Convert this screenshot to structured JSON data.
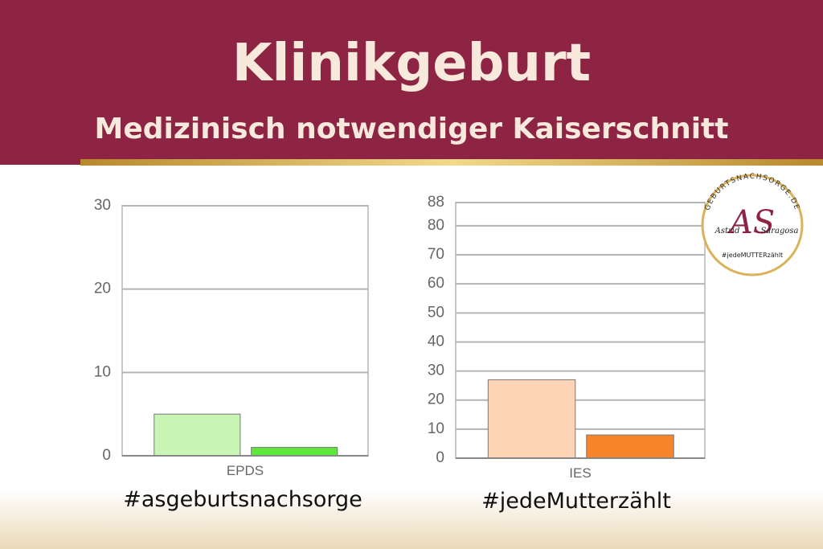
{
  "title": "Klinikgeburt",
  "subtitle": "Medizinisch notwendiger Kaiserschnitt",
  "chart_data": [
    {
      "type": "bar",
      "categories": [
        "EPDS"
      ],
      "series": [
        {
          "color": "#c8f5b4",
          "values": [
            5
          ]
        },
        {
          "color": "#5ee83a",
          "values": [
            1
          ]
        }
      ],
      "ylim": [
        0,
        30
      ],
      "yticks": [
        0,
        10,
        20,
        30
      ],
      "grid": true
    },
    {
      "type": "bar",
      "categories": [
        "IES"
      ],
      "series": [
        {
          "color": "#fdd5b6",
          "values": [
            27
          ]
        },
        {
          "color": "#f5842a",
          "values": [
            8
          ]
        }
      ],
      "ylim": [
        0,
        88
      ],
      "yticks": [
        0,
        10,
        20,
        30,
        40,
        50,
        60,
        70,
        80,
        88
      ],
      "grid": true
    }
  ],
  "hashtags": [
    "#asgeburtsnachsorge",
    "#jedeMutterzählt"
  ],
  "logo": {
    "ring": "GEBURTSNACHSORGE.DE",
    "mark": "AS",
    "first": "Astrid",
    "last": "Saragosa",
    "tag": "#jedeMUTTERzählt"
  }
}
